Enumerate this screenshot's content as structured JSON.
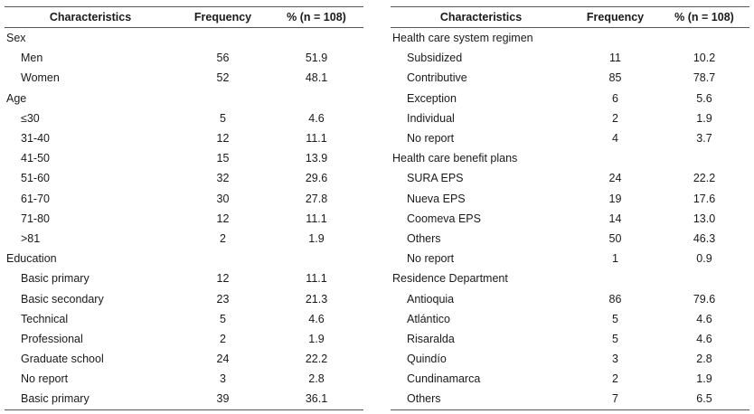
{
  "columns": [
    "Characteristics",
    "Frequency",
    "% (n = 108)"
  ],
  "left": [
    {
      "label": "Sex",
      "cat": true
    },
    {
      "label": "Men",
      "freq": "56",
      "pct": "51.9"
    },
    {
      "label": "Women",
      "freq": "52",
      "pct": "48.1"
    },
    {
      "label": "Age",
      "cat": true
    },
    {
      "label": "≤30",
      "freq": "5",
      "pct": "4.6"
    },
    {
      "label": "31-40",
      "freq": "12",
      "pct": "11.1"
    },
    {
      "label": "41-50",
      "freq": "15",
      "pct": "13.9"
    },
    {
      "label": "51-60",
      "freq": "32",
      "pct": "29.6"
    },
    {
      "label": "61-70",
      "freq": "30",
      "pct": "27.8"
    },
    {
      "label": "71-80",
      "freq": "12",
      "pct": "11.1"
    },
    {
      "label": ">81",
      "freq": "2",
      "pct": "1.9"
    },
    {
      "label": "Education",
      "cat": true
    },
    {
      "label": "Basic primary",
      "freq": "12",
      "pct": "11.1"
    },
    {
      "label": "Basic secondary",
      "freq": "23",
      "pct": "21.3"
    },
    {
      "label": "Technical",
      "freq": "5",
      "pct": "4.6"
    },
    {
      "label": "Professional",
      "freq": "2",
      "pct": "1.9"
    },
    {
      "label": "Graduate school",
      "freq": "24",
      "pct": "22.2"
    },
    {
      "label": "No report",
      "freq": "3",
      "pct": "2.8"
    },
    {
      "label": "Basic primary",
      "freq": "39",
      "pct": "36.1"
    }
  ],
  "right": [
    {
      "label": "Health care system regimen",
      "cat": true
    },
    {
      "label": "Subsidized",
      "freq": "11",
      "pct": "10.2"
    },
    {
      "label": "Contributive",
      "freq": "85",
      "pct": "78.7"
    },
    {
      "label": "Exception",
      "freq": "6",
      "pct": "5.6"
    },
    {
      "label": "Individual",
      "freq": "2",
      "pct": "1.9"
    },
    {
      "label": "No report",
      "freq": "4",
      "pct": "3.7"
    },
    {
      "label": "Health care benefit plans",
      "cat": true
    },
    {
      "label": "SURA EPS",
      "freq": "24",
      "pct": "22.2"
    },
    {
      "label": "Nueva EPS",
      "freq": "19",
      "pct": "17.6"
    },
    {
      "label": "Coomeva EPS",
      "freq": "14",
      "pct": "13.0"
    },
    {
      "label": "Others",
      "freq": "50",
      "pct": "46.3"
    },
    {
      "label": "No report",
      "freq": "1",
      "pct": "0.9"
    },
    {
      "label": "Residence Department",
      "cat": true
    },
    {
      "label": "Antioquia",
      "freq": "86",
      "pct": "79.6"
    },
    {
      "label": "Atlántico",
      "freq": "5",
      "pct": "4.6"
    },
    {
      "label": "Risaralda",
      "freq": "5",
      "pct": "4.6"
    },
    {
      "label": "Quindío",
      "freq": "3",
      "pct": "2.8"
    },
    {
      "label": "Cundinamarca",
      "freq": "2",
      "pct": "1.9"
    },
    {
      "label": "Others",
      "freq": "7",
      "pct": "6.5"
    }
  ]
}
